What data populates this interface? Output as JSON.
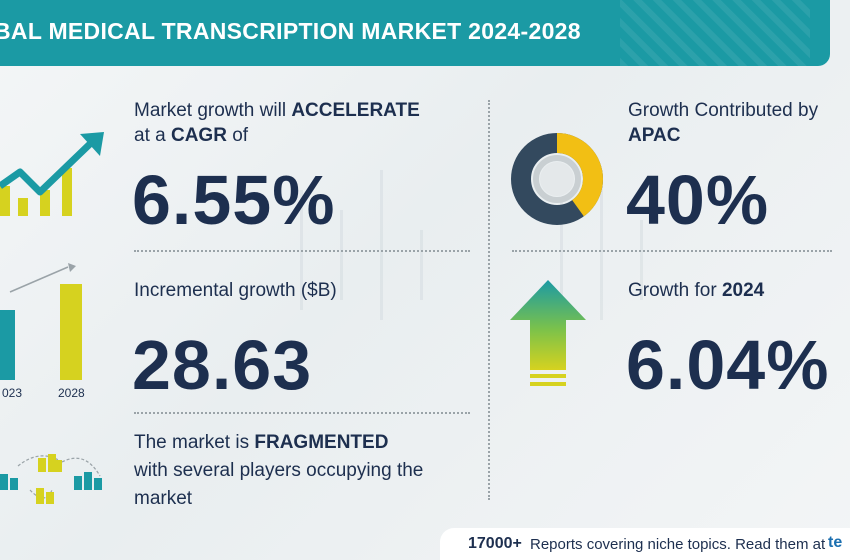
{
  "header": {
    "title": "BAL MEDICAL TRANSCRIPTION MARKET 2024-2028"
  },
  "cagr": {
    "line1_prefix": "Market growth will",
    "line1_bold": "ACCELERATE",
    "line2_prefix": "at a",
    "line2_bold": "CAGR",
    "line2_suffix": "of",
    "value": "6.55%"
  },
  "incremental": {
    "label": "Incremental growth ($B)",
    "value": "28.63",
    "years": [
      "023",
      "2028"
    ]
  },
  "market": {
    "line1_prefix": "The market is",
    "line1_bold": "FRAGMENTED",
    "line2": "with several players occupying the",
    "line3": "market"
  },
  "apac": {
    "line1": "Growth Contributed by",
    "line2": "APAC",
    "value": "40%",
    "share": 0.4
  },
  "growth2024": {
    "label_prefix": "Growth for",
    "label_bold": "2024",
    "value": "6.04%"
  },
  "footer": {
    "count": "17000+",
    "text": "Reports covering niche topics. Read them at",
    "logo": "te"
  },
  "colors": {
    "teal": "#1b9aa4",
    "navy": "#1d2f4f",
    "yellow": "#d6d21f",
    "donut_dark": "#33495e",
    "donut_yellow": "#f2bf14"
  }
}
